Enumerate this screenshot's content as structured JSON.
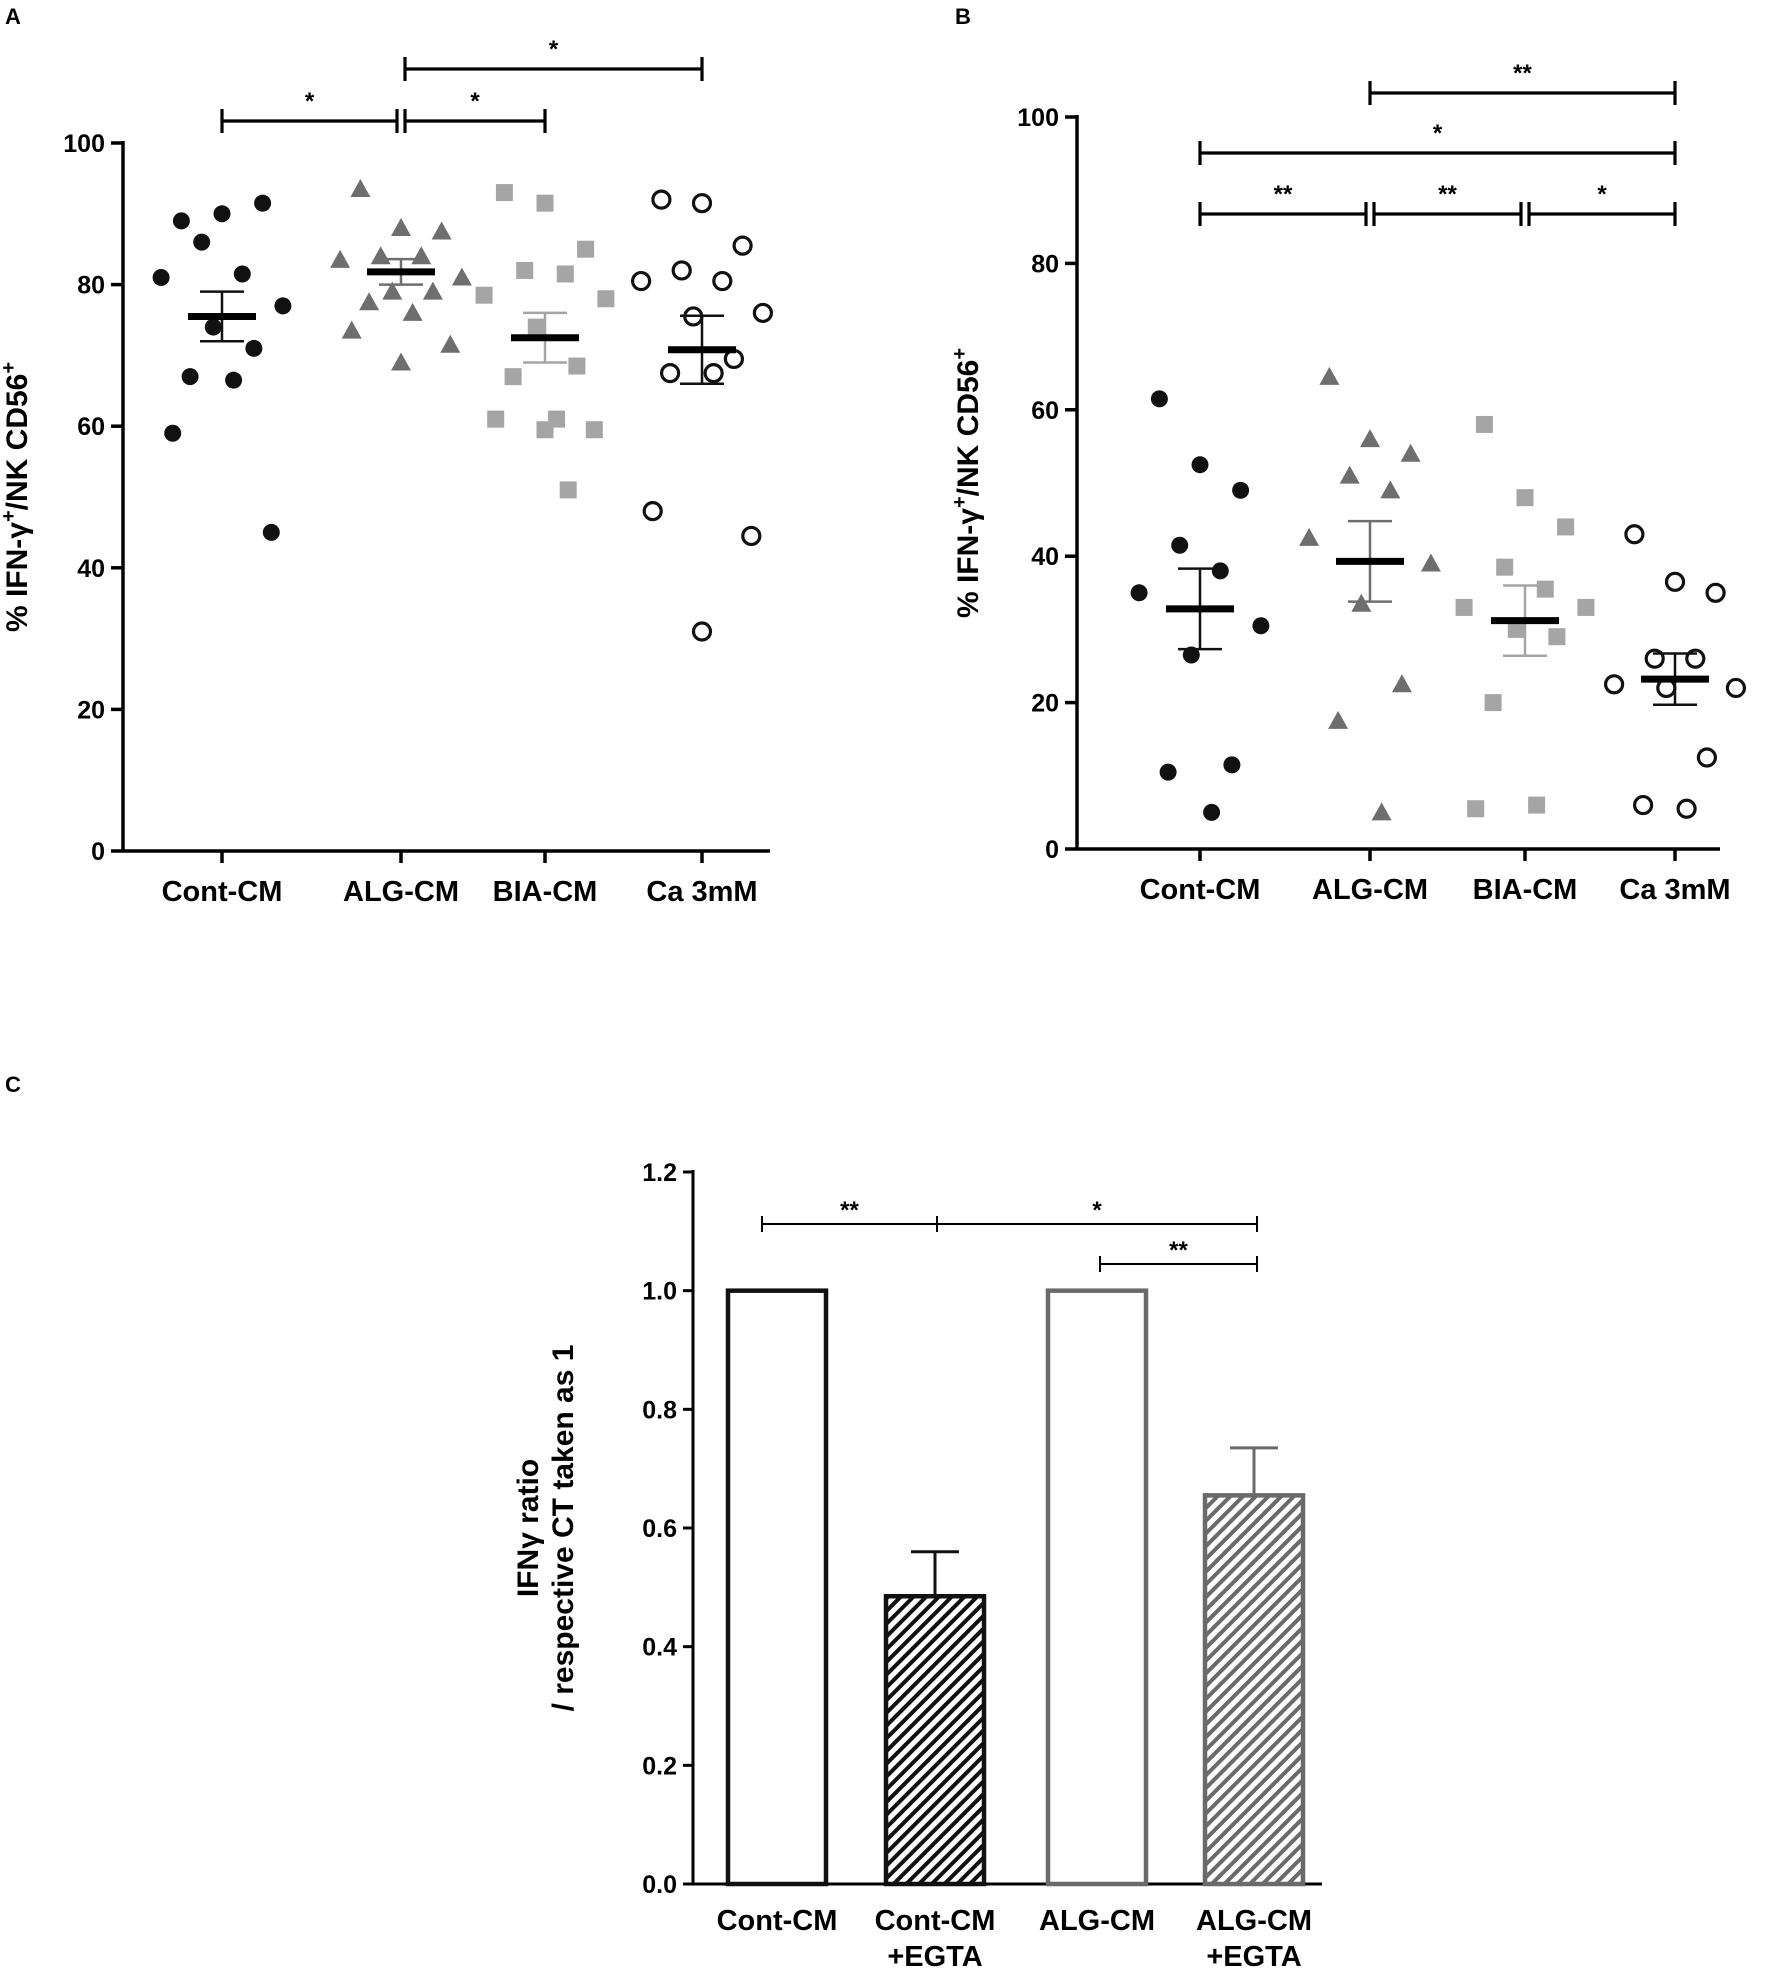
{
  "chart_data": [
    {
      "panel": "A",
      "type": "scatter",
      "ylabel": "% IFN-γ+/NK CD56+",
      "ylim": [
        0,
        100
      ],
      "yticks": [
        "0",
        "20",
        "40",
        "60",
        "80",
        "100"
      ],
      "categories": [
        "Cont-CM",
        "ALG-CM",
        "BIA-CM",
        "Ca 3mM"
      ],
      "colors": [
        "#111111",
        "#6e6e6e",
        "#a5a5a5",
        "#111111"
      ],
      "markers": [
        "filled-circle",
        "triangle",
        "square",
        "open-circle"
      ],
      "series": [
        {
          "name": "Cont-CM",
          "values": [
            89,
            90,
            91.5,
            86,
            81.5,
            81,
            77,
            74,
            71,
            67,
            66.5,
            59,
            45
          ],
          "mean": 75.5,
          "sem": 3.5
        },
        {
          "name": "ALG-CM",
          "values": [
            93.5,
            88,
            87.5,
            84,
            84,
            83.5,
            81,
            79,
            79,
            77.5,
            76,
            73.5,
            71.5,
            69
          ],
          "mean": 81.8,
          "sem": 1.8
        },
        {
          "name": "BIA-CM",
          "values": [
            93,
            91.5,
            85,
            82,
            81.5,
            78.5,
            78,
            74,
            68.5,
            67,
            61,
            61,
            59.5,
            59.5,
            51
          ],
          "mean": 72.5,
          "sem": 3.5
        },
        {
          "name": "Ca 3mM",
          "values": [
            92,
            91.5,
            85.5,
            82,
            80.5,
            80.5,
            76,
            75.5,
            69.5,
            67.5,
            67.5,
            48,
            44.5,
            31
          ],
          "mean": 70.8,
          "sem": 4.8
        }
      ],
      "significance": [
        {
          "from": "Cont-CM",
          "to": "ALG-CM",
          "label": "*"
        },
        {
          "from": "ALG-CM",
          "to": "BIA-CM",
          "label": "*"
        },
        {
          "from": "ALG-CM",
          "to": "Ca 3mM",
          "label": "*"
        }
      ]
    },
    {
      "panel": "B",
      "type": "scatter",
      "ylabel": "% IFN-γ+/NK CD56+",
      "ylim": [
        0,
        100
      ],
      "yticks": [
        "0",
        "20",
        "40",
        "60",
        "80",
        "100"
      ],
      "categories": [
        "Cont-CM",
        "ALG-CM",
        "BIA-CM",
        "Ca 3mM"
      ],
      "colors": [
        "#111111",
        "#6e6e6e",
        "#a5a5a5",
        "#111111"
      ],
      "markers": [
        "filled-circle",
        "triangle",
        "square",
        "open-circle"
      ],
      "series": [
        {
          "name": "Cont-CM",
          "values": [
            61.5,
            52.5,
            49,
            41.5,
            38,
            35,
            30.5,
            26.5,
            11.5,
            10.5,
            5
          ],
          "mean": 32.8,
          "sem": 5.5
        },
        {
          "name": "ALG-CM",
          "values": [
            64.5,
            56,
            54,
            51,
            49,
            42.5,
            39,
            33.5,
            22.5,
            17.5,
            5
          ],
          "mean": 39.3,
          "sem": 5.5
        },
        {
          "name": "BIA-CM",
          "values": [
            58,
            48,
            44,
            38.5,
            35.5,
            33,
            33,
            30,
            29,
            20,
            6,
            5.5
          ],
          "mean": 31.2,
          "sem": 4.8
        },
        {
          "name": "Ca 3mM",
          "values": [
            43,
            36.5,
            35,
            26,
            26,
            22.5,
            22,
            22,
            12.5,
            6,
            5.5
          ],
          "mean": 23.2,
          "sem": 3.5
        }
      ],
      "significance": [
        {
          "from": "ALG-CM",
          "to": "Ca 3mM",
          "label": "**"
        },
        {
          "from": "Cont-CM",
          "to": "Ca 3mM",
          "label": "*"
        },
        {
          "from": "Cont-CM",
          "to": "ALG-CM",
          "label": "**"
        },
        {
          "from": "ALG-CM",
          "to": "BIA-CM",
          "label": "**"
        },
        {
          "from": "BIA-CM",
          "to": "Ca 3mM",
          "label": "*"
        }
      ]
    },
    {
      "panel": "C",
      "type": "bar",
      "ylabel_line1": "IFNγ ratio",
      "ylabel_line2": "/ respective CT taken as 1",
      "ylim": [
        0,
        1.2
      ],
      "yticks": [
        "0.0",
        "0.2",
        "0.4",
        "0.6",
        "0.8",
        "1.0",
        "1.2"
      ],
      "categories": [
        {
          "line1": "Cont-CM",
          "line2": ""
        },
        {
          "line1": "Cont-CM",
          "line2": "+EGTA"
        },
        {
          "line1": "ALG-CM",
          "line2": ""
        },
        {
          "line1": "ALG-CM",
          "line2": "+EGTA"
        }
      ],
      "values": [
        1.0,
        0.485,
        1.0,
        0.655
      ],
      "errors": [
        0,
        0.075,
        0,
        0.08
      ],
      "fills": [
        "open",
        "hatched",
        "open",
        "hatched"
      ],
      "colors": [
        "#111111",
        "#111111",
        "#6a6a6a",
        "#6a6a6a"
      ],
      "significance": [
        {
          "from": "Cont-CM",
          "to": "Cont-CM +EGTA",
          "label": "**"
        },
        {
          "from": "Cont-CM +EGTA",
          "to": "ALG-CM +EGTA",
          "label": "*"
        },
        {
          "from": "ALG-CM",
          "to": "ALG-CM +EGTA",
          "label": "**"
        }
      ]
    }
  ]
}
